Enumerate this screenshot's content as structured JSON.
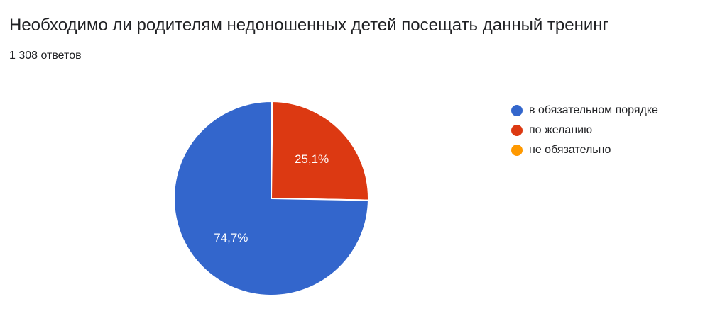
{
  "question": {
    "title": "Необходимо ли родителям недоношенных детей посещать данный тренинг",
    "response_count": "1 308 ответов"
  },
  "chart_data": {
    "type": "pie",
    "title": "Необходимо ли родителям недоношенных детей посещать данный тренинг",
    "legend_placement": "right",
    "categories": [
      "в обязательном порядке",
      "по желанию",
      "не обязательно"
    ],
    "values": [
      74.7,
      25.1,
      0.2
    ],
    "labels": [
      "74,7%",
      "25,1%",
      ""
    ],
    "colors": [
      "#3366cc",
      "#dc3912",
      "#ff9900"
    ]
  }
}
